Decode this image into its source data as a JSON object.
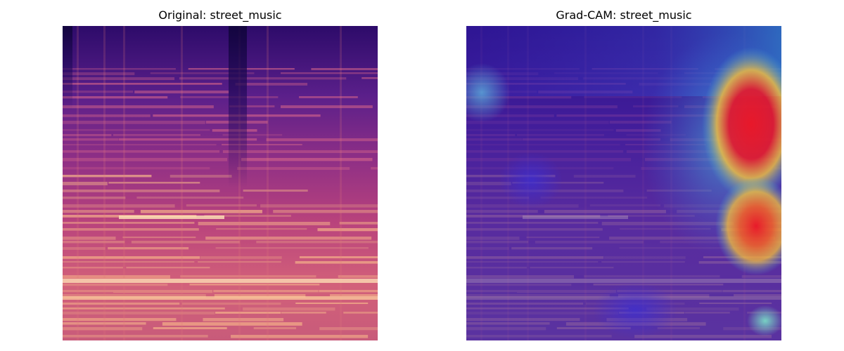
{
  "panels": [
    {
      "title": "Original: street_music",
      "image": "spectrogram (magma colormap)"
    },
    {
      "title": "Grad-CAM: street_music",
      "image": "spectrogram with Grad-CAM heatmap overlay (jet colormap)"
    }
  ],
  "colors": {
    "background": "#ffffff",
    "spectrogram_low": "#2a0a63",
    "spectrogram_mid": "#c2407a",
    "spectrogram_high": "#fde6b0",
    "heat_low": "#3a2fd6",
    "heat_mid": "#46b4d8",
    "heat_high": "#e8182a",
    "heat_warm": "#f7c03a"
  }
}
